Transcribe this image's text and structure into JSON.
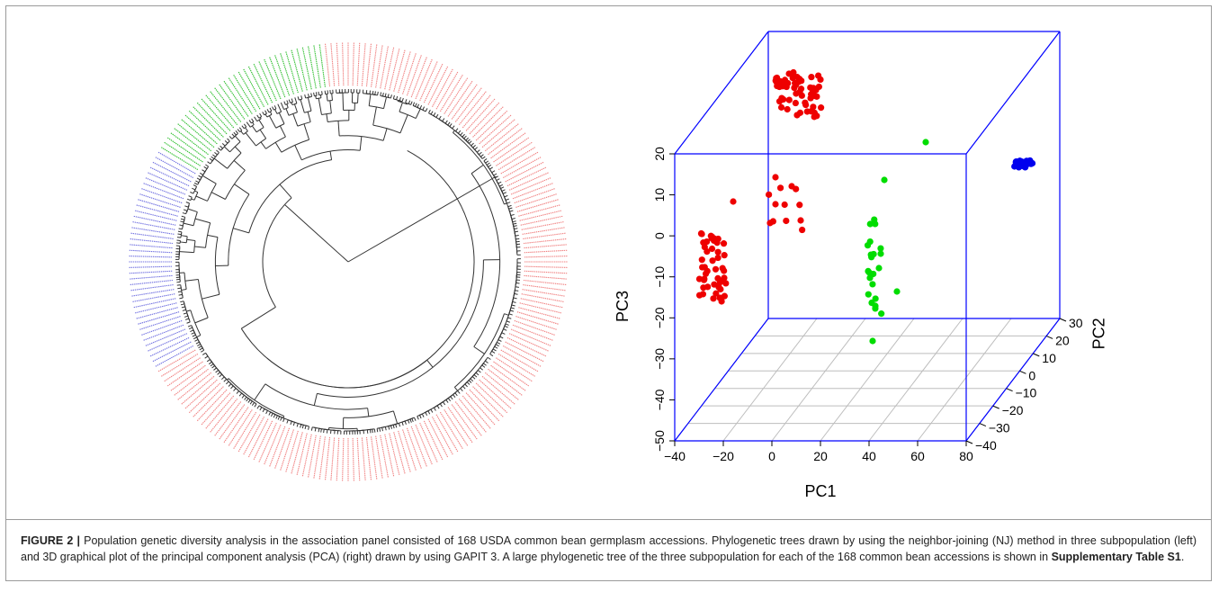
{
  "tree": {
    "groups": [
      {
        "name": "",
        "color": "#f08080",
        "start_deg": -90,
        "end_deg": 97
      },
      {
        "name": "",
        "color": "#2fbf2f",
        "start_deg": 97,
        "end_deg": 150
      },
      {
        "name": "",
        "color": "#7070e0",
        "start_deg": 150,
        "end_deg": 210
      },
      {
        "name": "",
        "color": "#f08080",
        "start_deg": 210,
        "end_deg": 270
      }
    ]
  },
  "chart_data": {
    "type": "scatter3d",
    "title": "",
    "xlabel": "PC1",
    "ylabel": "PC2",
    "zlabel": "PC3",
    "xlim": [
      -40,
      80
    ],
    "ylim": [
      -40,
      30
    ],
    "zlim": [
      -50,
      20
    ],
    "x_ticks": [
      "−40",
      "−20",
      "0",
      "20",
      "40",
      "60",
      "80"
    ],
    "y_ticks": [
      "−40",
      "−30",
      "−20",
      "−10",
      "0",
      "10",
      "20",
      "30"
    ],
    "z_ticks": [
      "−50",
      "−40",
      "−30",
      "−20",
      "−10",
      "0",
      "10",
      "20"
    ],
    "box_color": "#0000ff",
    "grid_color": "#bdbdbd",
    "series": [
      {
        "name": "",
        "color": "#ee0000"
      },
      {
        "name": "",
        "color": "#00dd00"
      },
      {
        "name": "",
        "color": "#0000ee"
      }
    ]
  },
  "caption": {
    "label": "FIGURE 2 |",
    "text": " Population genetic diversity analysis in the association panel consisted of 168 USDA common bean germplasm accessions. Phylogenetic trees drawn by using the neighbor-joining (NJ) method in three subpopulation (left) and 3D graphical plot of the principal component analysis (PCA) (right) drawn by using GAPIT 3. A large phylogenetic tree of the three subpopulation for each of the 168 common bean accessions is shown in ",
    "supp": "Supplementary Table S1",
    "end": "."
  }
}
